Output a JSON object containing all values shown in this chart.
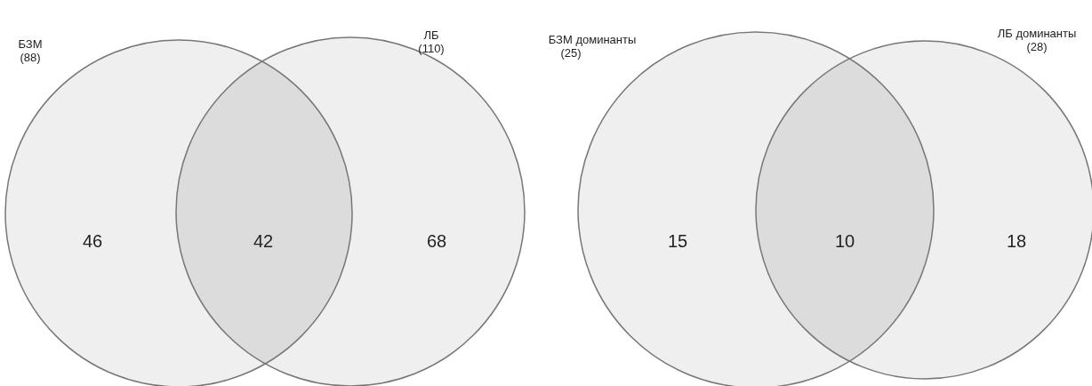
{
  "chart_data": [
    {
      "type": "other",
      "categories": [
        null,
        null,
        null
      ],
      "annotations": [
        "БЗМ",
        "(88)",
        "ЛБ",
        "(110)"
      ],
      "values": [
        46,
        42,
        68
      ],
      "data_labels": true,
      "colors": [
        "#efefef",
        "#dcdcdc",
        "#efefef"
      ]
    },
    {
      "type": "other",
      "categories": [
        null,
        null,
        null
      ],
      "annotations": [
        "БЗМ доминанты",
        "(25)",
        "ЛБ доминанты",
        "(28)"
      ],
      "values": [
        15,
        10,
        18
      ],
      "data_labels": true,
      "colors": [
        "#efefef",
        "#dcdcdc",
        "#efefef"
      ]
    }
  ]
}
